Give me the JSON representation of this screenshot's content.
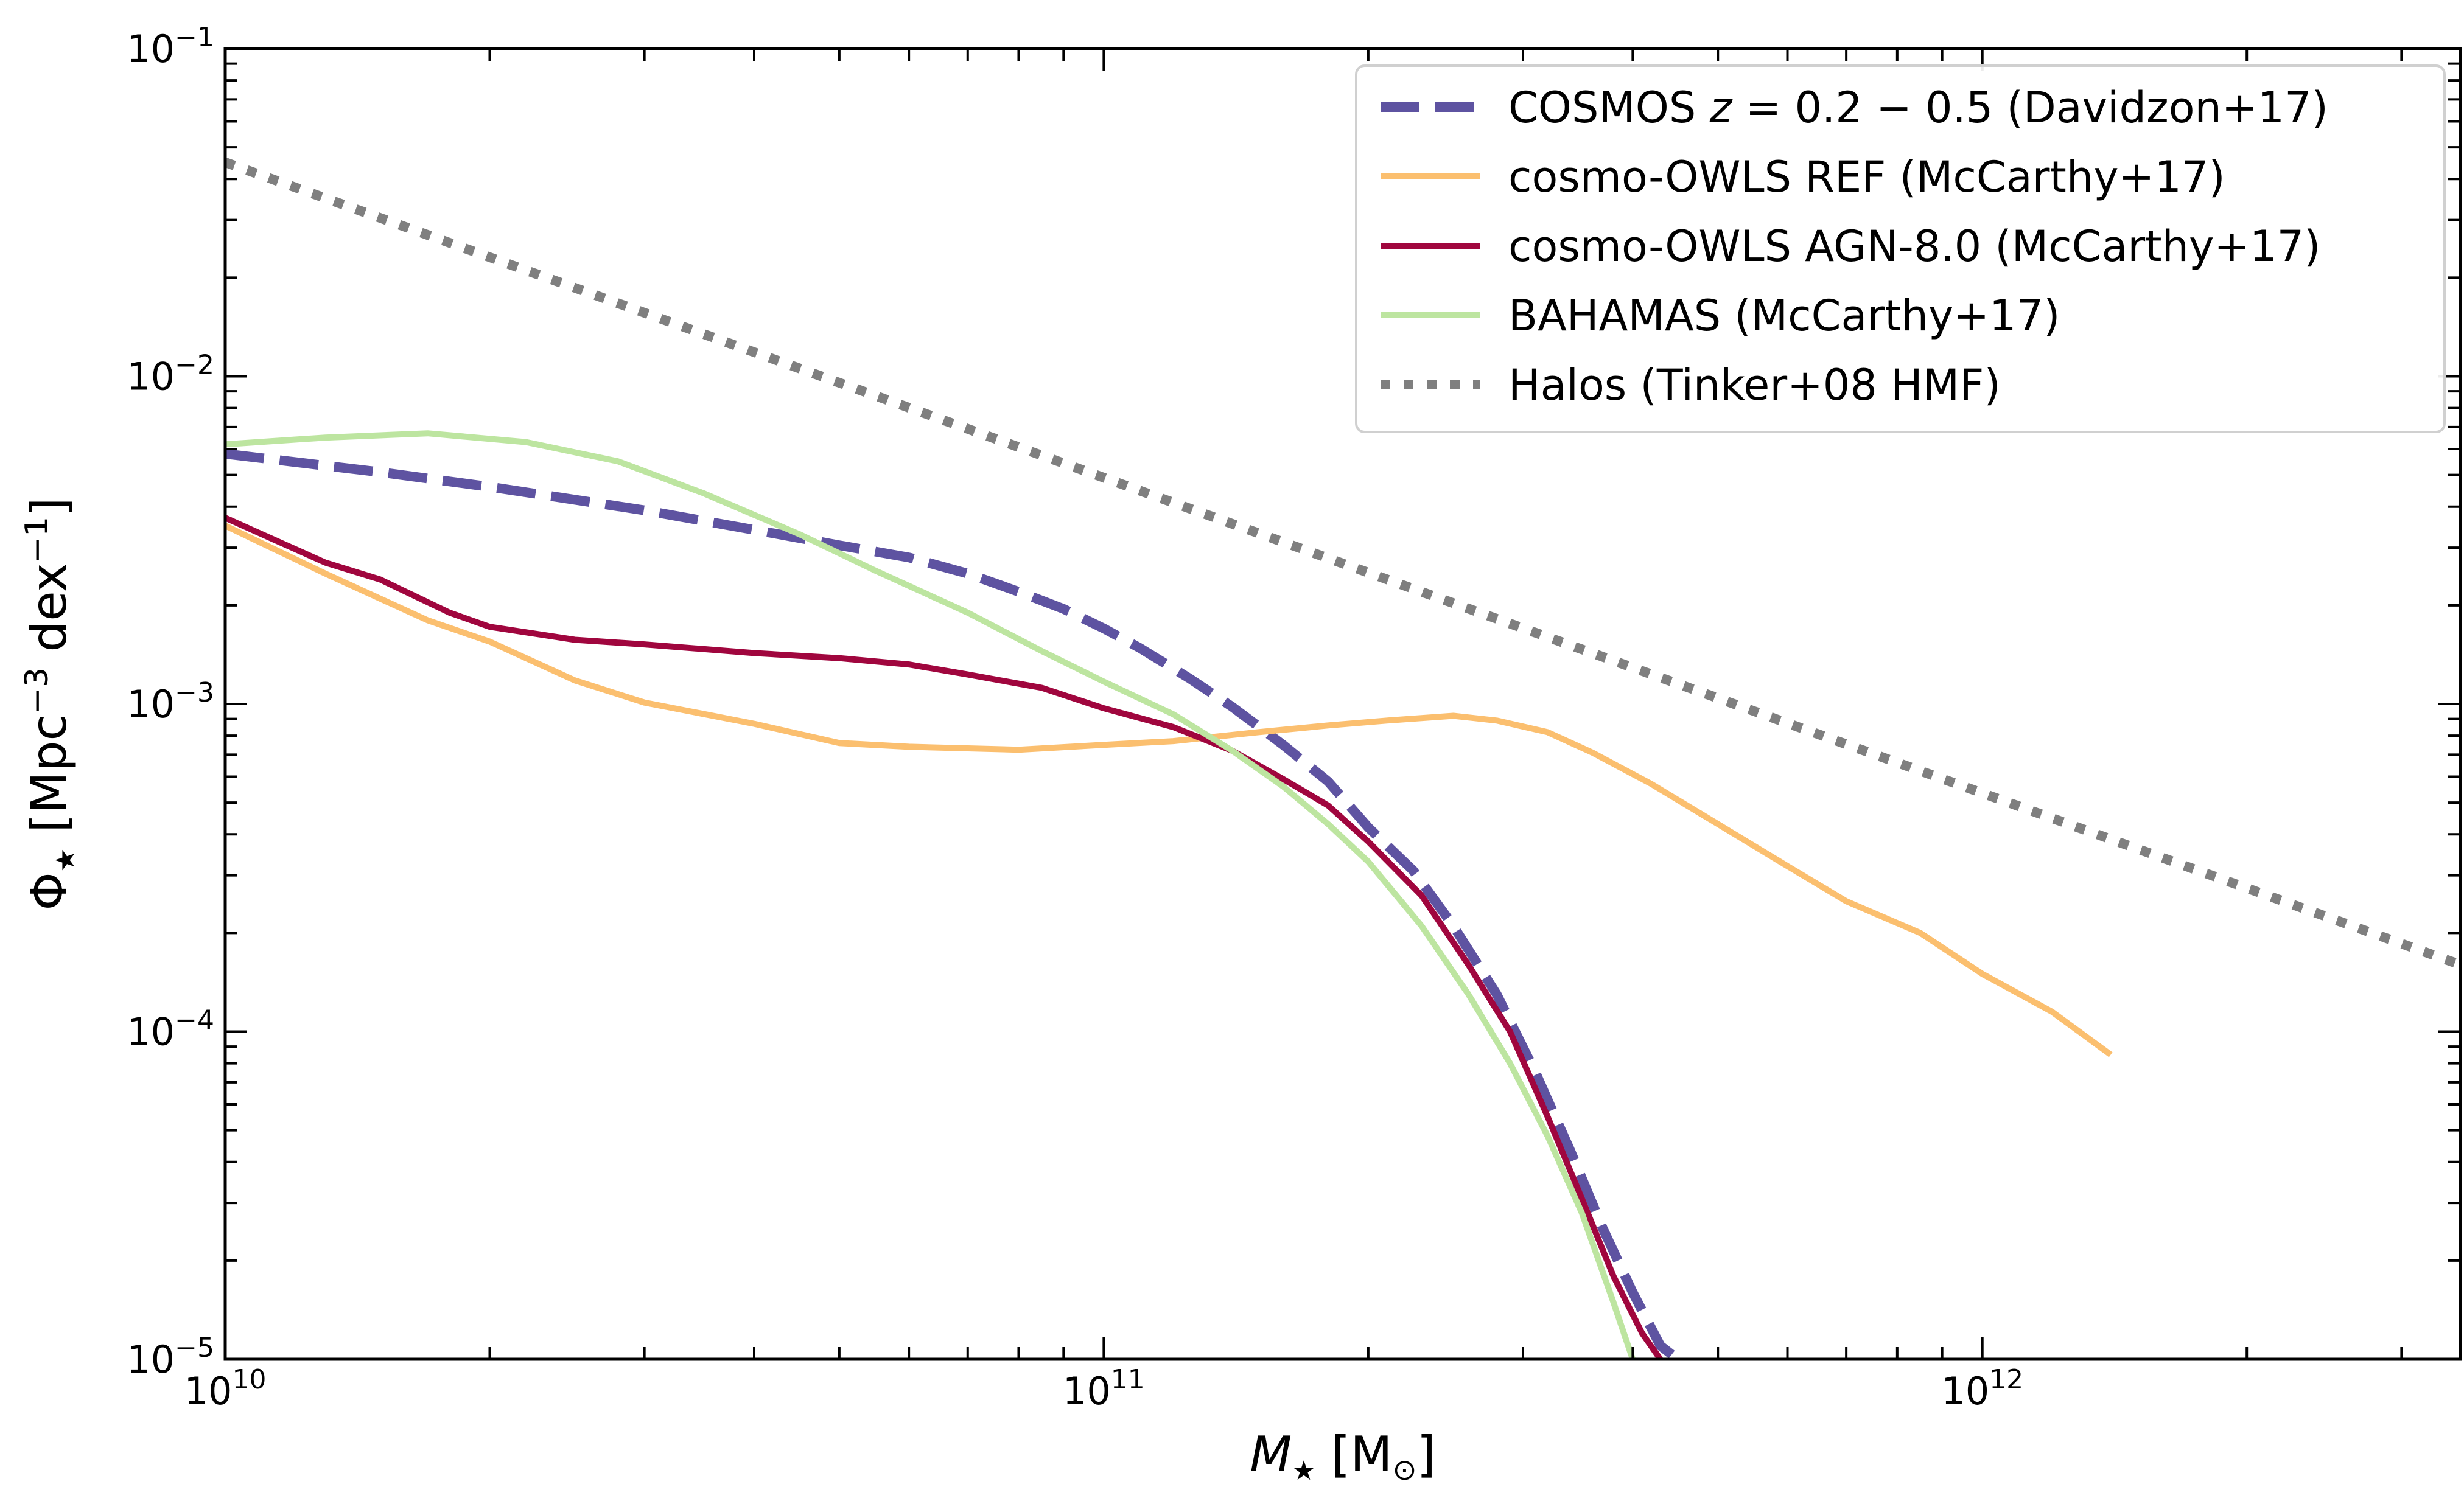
{
  "chart_data": {
    "type": "line",
    "xscale": "log",
    "yscale": "log",
    "xlim": [
      10000000000,
      3500000000000
    ],
    "ylim": [
      1e-05,
      0.1
    ],
    "xlabel": {
      "main": "M",
      "sub": "★",
      "unit_open": " [M",
      "unit_sub": "⊙",
      "unit_close": "]"
    },
    "ylabel": {
      "main": "Φ",
      "sub": "★",
      "unit_open": " [Mpc",
      "unit_exp1": "−3",
      "unit_mid": " dex",
      "unit_exp2": "−1",
      "unit_close": "]"
    },
    "xticks": [
      {
        "value": 10000000000,
        "base": "10",
        "exp": "10"
      },
      {
        "value": 100000000000,
        "base": "10",
        "exp": "11"
      },
      {
        "value": 1000000000000,
        "base": "10",
        "exp": "12"
      }
    ],
    "yticks": [
      {
        "value": 0.1,
        "base": "10",
        "exp": "−1"
      },
      {
        "value": 0.01,
        "base": "10",
        "exp": "−2"
      },
      {
        "value": 0.001,
        "base": "10",
        "exp": "−3"
      },
      {
        "value": 0.0001,
        "base": "10",
        "exp": "−4"
      },
      {
        "value": 1e-05,
        "base": "10",
        "exp": "−5"
      }
    ],
    "legend_position": "top-right",
    "series": [
      {
        "name": "COSMOS z = 0.2 − 0.5 (Davidzon+17)",
        "label_parts": [
          "COSMOS ",
          "z",
          " = 0.2 − 0.5 (Davidzon+17)"
        ],
        "color": "#5e53a1",
        "style": "dashed",
        "x": [
          10000000000,
          15000000000,
          20000000000,
          30000000000,
          40000000000,
          50000000000,
          60000000000,
          70000000000,
          80000000000,
          90000000000,
          100000000000,
          110000000000,
          125000000000,
          140000000000,
          160000000000,
          180000000000,
          200000000000,
          225000000000,
          250000000000,
          280000000000,
          310000000000,
          340000000000,
          370000000000,
          400000000000,
          430000000000,
          450000000000
        ],
        "y": [
          0.0058,
          0.0051,
          0.0046,
          0.0039,
          0.0034,
          0.00305,
          0.0028,
          0.0025,
          0.0022,
          0.00195,
          0.0017,
          0.00148,
          0.0012,
          0.00098,
          0.00075,
          0.00058,
          0.00042,
          0.00031,
          0.00021,
          0.00013,
          7.5e-05,
          4.3e-05,
          2.5e-05,
          1.6e-05,
          1.1e-05,
          1e-05
        ]
      },
      {
        "name": "cosmo-OWLS REF (McCarthy+17)",
        "label_parts": [
          "cosmo-OWLS REF (McCarthy+17)"
        ],
        "color": "#fbbf6f",
        "style": "solid",
        "x": [
          10000000000,
          13000000000,
          17000000000,
          20000000000,
          25000000000,
          30000000000,
          40000000000,
          50000000000,
          60000000000,
          80000000000,
          100000000000,
          120000000000,
          150000000000,
          180000000000,
          210000000000,
          250000000000,
          280000000000,
          320000000000,
          360000000000,
          420000000000,
          500000000000,
          600000000000,
          700000000000,
          850000000000,
          1000000000000,
          1200000000000,
          1400000000000
        ],
        "y": [
          0.0035,
          0.0025,
          0.0018,
          0.00155,
          0.00118,
          0.00101,
          0.00087,
          0.00076,
          0.00074,
          0.000725,
          0.00075,
          0.00077,
          0.00082,
          0.00086,
          0.00089,
          0.00092,
          0.00089,
          0.00082,
          0.00071,
          0.00057,
          0.00043,
          0.00032,
          0.00025,
          0.0002,
          0.00015,
          0.000115,
          8.5e-05
        ]
      },
      {
        "name": "cosmo-OWLS AGN-8.0 (McCarthy+17)",
        "label_parts": [
          "cosmo-OWLS AGN-8.0 (McCarthy+17)"
        ],
        "color": "#a0063e",
        "style": "solid",
        "x": [
          10000000000,
          11000000000,
          13000000000,
          15000000000,
          18000000000,
          20000000000,
          25000000000,
          30000000000,
          40000000000,
          50000000000,
          60000000000,
          70000000000,
          85000000000,
          100000000000,
          120000000000,
          140000000000,
          160000000000,
          180000000000,
          200000000000,
          230000000000,
          260000000000,
          290000000000,
          320000000000,
          350000000000,
          380000000000,
          410000000000,
          430000000000
        ],
        "y": [
          0.0037,
          0.0033,
          0.0027,
          0.0024,
          0.0019,
          0.00172,
          0.00157,
          0.00152,
          0.00143,
          0.00138,
          0.00132,
          0.00123,
          0.00112,
          0.00097,
          0.00085,
          0.00072,
          0.00059,
          0.00049,
          0.00038,
          0.00026,
          0.00016,
          0.0001,
          5.5e-05,
          3.1e-05,
          1.8e-05,
          1.2e-05,
          1e-05
        ]
      },
      {
        "name": "BAHAMAS (McCarthy+17)",
        "label_parts": [
          "BAHAMAS (McCarthy+17)"
        ],
        "color": "#bde5a0",
        "style": "solid",
        "x": [
          10000000000,
          13000000000,
          17000000000,
          22000000000,
          28000000000,
          35000000000,
          45000000000,
          55000000000,
          70000000000,
          85000000000,
          100000000000,
          120000000000,
          140000000000,
          160000000000,
          180000000000,
          200000000000,
          230000000000,
          260000000000,
          290000000000,
          320000000000,
          350000000000,
          380000000000,
          400000000000
        ],
        "y": [
          0.0062,
          0.0065,
          0.0067,
          0.0063,
          0.0055,
          0.0044,
          0.0033,
          0.00255,
          0.0019,
          0.00145,
          0.00117,
          0.00093,
          0.00072,
          0.00056,
          0.00043,
          0.00033,
          0.00021,
          0.00013,
          8e-05,
          4.8e-05,
          2.8e-05,
          1.5e-05,
          1e-05
        ]
      },
      {
        "name": "Halos (Tinker+08 HMF)",
        "label_parts": [
          "Halos (Tinker+08 HMF)"
        ],
        "color": "#7f7f7f",
        "style": "dotted",
        "x": [
          10000000000,
          3500000000000
        ],
        "y": [
          0.045,
          0.00016
        ]
      }
    ]
  }
}
